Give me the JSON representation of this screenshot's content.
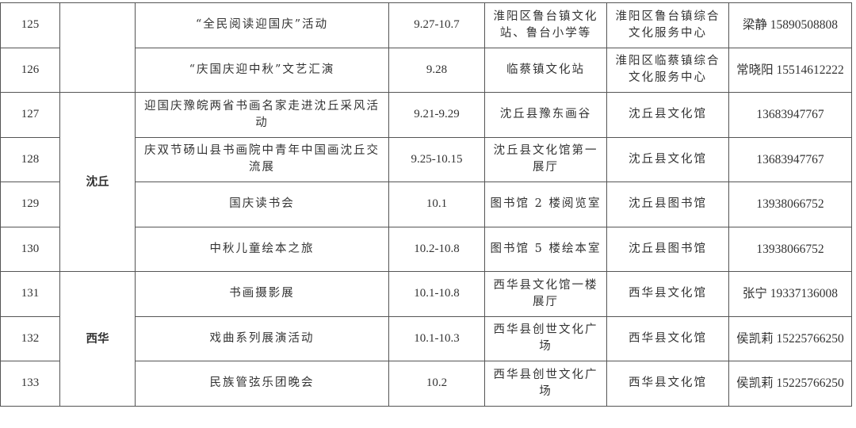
{
  "rows": [
    {
      "no": "125",
      "activity": "“全民阅读迎国庆”活动",
      "date": "9.27-10.7",
      "location": "淮阳区鲁台镇文化站、鲁台小学等",
      "organizer": "淮阳区鲁台镇综合文化服务中心",
      "contact": "梁静 15890508808"
    },
    {
      "no": "126",
      "activity": "“庆国庆迎中秋”文艺汇演",
      "date": "9.28",
      "location": "临蔡镇文化站",
      "organizer": "淮阳区临蔡镇综合文化服务中心",
      "contact": "常晓阳 15514612222"
    },
    {
      "no": "127",
      "activity": "迎国庆豫皖两省书画名家走进沈丘采风活动",
      "date": "9.21-9.29",
      "location": "沈丘县豫东画谷",
      "organizer": "沈丘县文化馆",
      "contact": "13683947767"
    },
    {
      "no": "128",
      "activity": "庆双节砀山县书画院中青年中国画沈丘交流展",
      "date": "9.25-10.15",
      "location": "沈丘县文化馆第一展厅",
      "organizer": "沈丘县文化馆",
      "contact": "13683947767"
    },
    {
      "no": "129",
      "activity": "国庆读书会",
      "date": "10.1",
      "location": "图书馆 2 楼阅览室",
      "organizer": "沈丘县图书馆",
      "contact": "13938066752"
    },
    {
      "no": "130",
      "activity": "中秋儿童绘本之旅",
      "date": "10.2-10.8",
      "location": "图书馆 5 楼绘本室",
      "organizer": "沈丘县图书馆",
      "contact": "13938066752"
    },
    {
      "no": "131",
      "activity": "书画摄影展",
      "date": "10.1-10.8",
      "location": "西华县文化馆一楼展厅",
      "organizer": "西华县文化馆",
      "contact": "张宁 19337136008"
    },
    {
      "no": "132",
      "activity": "戏曲系列展演活动",
      "date": "10.1-10.3",
      "location": "西华县创世文化广场",
      "organizer": "西华县文化馆",
      "contact": "侯凯莉 15225766250"
    },
    {
      "no": "133",
      "activity": "民族管弦乐团晚会",
      "date": "10.2",
      "location": "西华县创世文化广场",
      "organizer": "西华县文化馆",
      "contact": "侯凯莉 15225766250"
    }
  ],
  "regions": {
    "shenqiu": "沈丘",
    "xihua": "西华"
  }
}
